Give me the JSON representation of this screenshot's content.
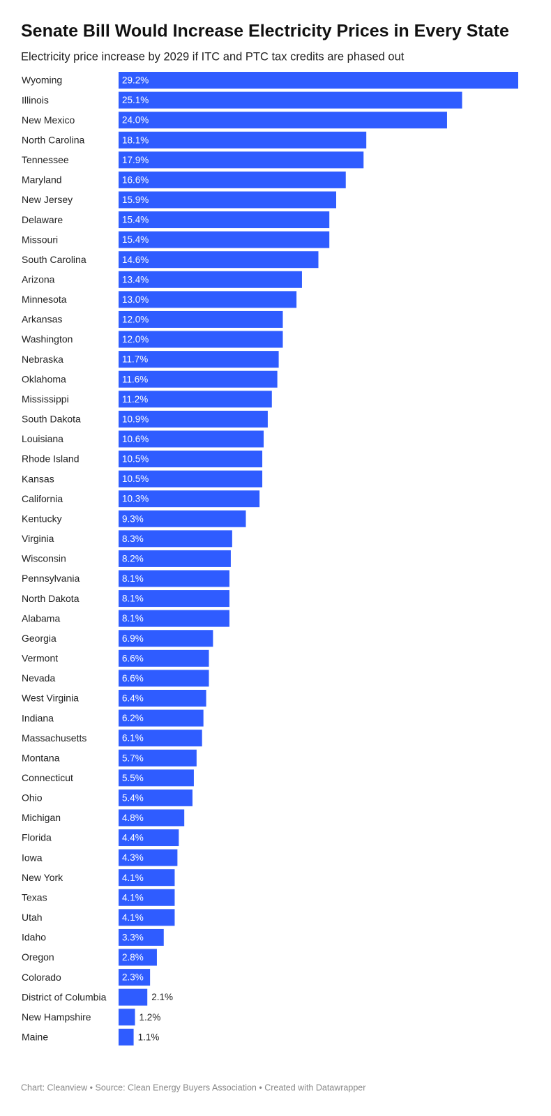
{
  "chart_data": {
    "type": "bar",
    "orientation": "horizontal",
    "title": "Senate Bill Would Increase Electricity Prices in Every State",
    "subtitle": "Electricity price increase by 2029 if ITC and PTC tax credits are phased out",
    "footer": "Chart: Cleanview • Source: Clean Energy Buyers Association  • Created with Datawrapper",
    "color": "#2f5cff",
    "categories": [
      "Wyoming",
      "Illinois",
      "New Mexico",
      "North Carolina",
      "Tennessee",
      "Maryland",
      "New Jersey",
      "Delaware",
      "Missouri",
      "South Carolina",
      "Arizona",
      "Minnesota",
      "Arkansas",
      "Washington",
      "Nebraska",
      "Oklahoma",
      "Mississippi",
      "South Dakota",
      "Louisiana",
      "Rhode Island",
      "Kansas",
      "California",
      "Kentucky",
      "Virginia",
      "Wisconsin",
      "Pennsylvania",
      "North Dakota",
      "Alabama",
      "Georgia",
      "Vermont",
      "Nevada",
      "West Virginia",
      "Indiana",
      "Massachusetts",
      "Montana",
      "Connecticut",
      "Ohio",
      "Michigan",
      "Florida",
      "Iowa",
      "New York",
      "Texas",
      "Utah",
      "Idaho",
      "Oregon",
      "Colorado",
      "District of Columbia",
      "New Hampshire",
      "Maine"
    ],
    "values": [
      29.2,
      25.1,
      24.0,
      18.1,
      17.9,
      16.6,
      15.9,
      15.4,
      15.4,
      14.6,
      13.4,
      13.0,
      12.0,
      12.0,
      11.7,
      11.6,
      11.2,
      10.9,
      10.6,
      10.5,
      10.5,
      10.3,
      9.3,
      8.3,
      8.2,
      8.1,
      8.1,
      8.1,
      6.9,
      6.6,
      6.6,
      6.4,
      6.2,
      6.1,
      5.7,
      5.5,
      5.4,
      4.8,
      4.4,
      4.3,
      4.1,
      4.1,
      4.1,
      3.3,
      2.8,
      2.3,
      2.1,
      1.2,
      1.1
    ],
    "value_labels": [
      "29.2%",
      "25.1%",
      "24.0%",
      "18.1%",
      "17.9%",
      "16.6%",
      "15.9%",
      "15.4%",
      "15.4%",
      "14.6%",
      "13.4%",
      "13.0%",
      "12.0%",
      "12.0%",
      "11.7%",
      "11.6%",
      "11.2%",
      "10.9%",
      "10.6%",
      "10.5%",
      "10.5%",
      "10.3%",
      "9.3%",
      "8.3%",
      "8.2%",
      "8.1%",
      "8.1%",
      "8.1%",
      "6.9%",
      "6.6%",
      "6.6%",
      "6.4%",
      "6.2%",
      "6.1%",
      "5.7%",
      "5.5%",
      "5.4%",
      "4.8%",
      "4.4%",
      "4.3%",
      "4.1%",
      "4.1%",
      "4.1%",
      "3.3%",
      "2.8%",
      "2.3%",
      "2.1%",
      "1.2%",
      "1.1%"
    ]
  }
}
